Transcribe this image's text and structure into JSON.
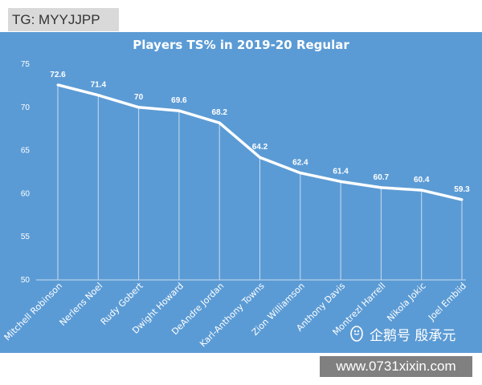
{
  "banner": {
    "tg": "TG: MYYJJPP",
    "website": "www.0731xixin.com"
  },
  "watermark": {
    "text": "企鹅号 殷承元",
    "icon": "penguin-icon"
  },
  "colors": {
    "background": "#5b9bd5",
    "line": "#ffffff",
    "text": "#ffffff"
  },
  "chart_data": {
    "type": "line",
    "title": "Players TS% in 2019-20 Regular",
    "xlabel": "",
    "ylabel": "",
    "ylim": [
      50,
      75
    ],
    "yticks": [
      50,
      55,
      60,
      65,
      70,
      75
    ],
    "categories": [
      "Mitchell Robinson",
      "Nerlens Noel",
      "Rudy Gobert",
      "Dwight Howard",
      "DeAndre Jordan",
      "Karl-Anthony Towns",
      "Zion Williamson",
      "Anthony Davis",
      "Montrezl Harrell",
      "Nikola Jokic",
      "Joel Embiid"
    ],
    "series": [
      {
        "name": "TS%",
        "values": [
          72.6,
          71.4,
          70,
          69.6,
          68.2,
          64.2,
          62.4,
          61.4,
          60.7,
          60.4,
          59.3
        ]
      }
    ],
    "grid": "vertical",
    "legend": "none"
  }
}
